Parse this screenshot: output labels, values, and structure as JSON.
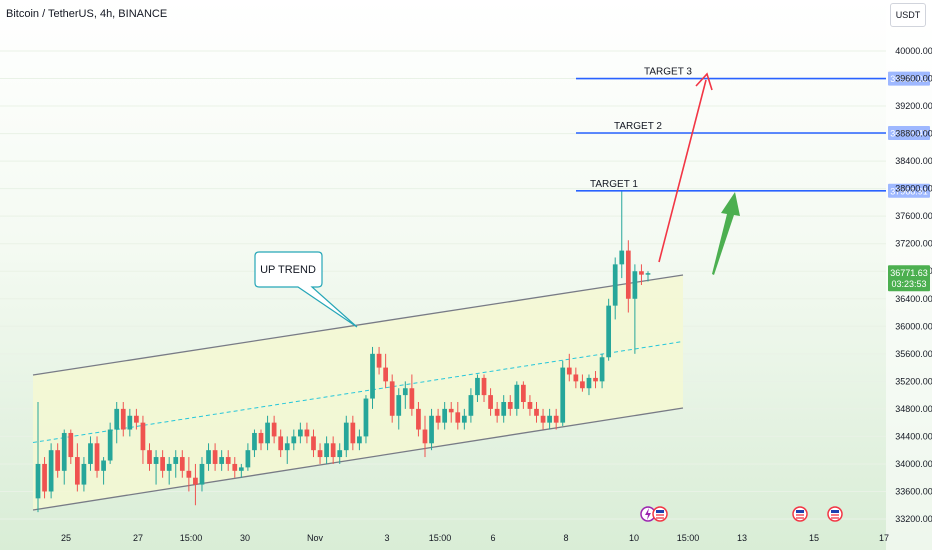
{
  "header": {
    "title": "Bitcoin / TetherUS, 4h, BINANCE",
    "currency": "USDT"
  },
  "colors": {
    "up": "#26a69a",
    "down": "#ef5350",
    "target_line": "#2962ff",
    "channel_fill": "#f5f8d2",
    "channel_line": "#787b86",
    "midline": "#26c6da",
    "red_arrow": "#f23645",
    "green_arrow": "#4caf50",
    "callout_border": "#26a6b7"
  },
  "annotations": {
    "up_trend": "UP TREND",
    "targets": [
      {
        "label": "TARGET 1",
        "price": 37968.91,
        "price_label": "37968.91"
      },
      {
        "label": "TARGET 2",
        "price": 38808.47,
        "price_label": "38808.47"
      },
      {
        "label": "TARGET 3",
        "price": 39599.02,
        "price_label": "39599.02"
      }
    ],
    "last_price": "36771.63",
    "countdown": "03:23:53"
  },
  "chart_data": {
    "type": "candlestick",
    "ylim": [
      33100,
      40150
    ],
    "y_ticks": [
      "40000.00",
      "39600.00",
      "39200.00",
      "38800.00",
      "38400.00",
      "38000.00",
      "37600.00",
      "37200.00",
      "36800.00",
      "36400.00",
      "36000.00",
      "35600.00",
      "35200.00",
      "34800.00",
      "34400.00",
      "34000.00",
      "33600.00",
      "33200.00"
    ],
    "x_ticks": [
      "25",
      "27",
      "15:00",
      "30",
      "Nov",
      "3",
      "15:00",
      "6",
      "8",
      "10",
      "15:00",
      "13",
      "15",
      "17"
    ],
    "candles": [
      [
        33500,
        34900,
        33300,
        34000
      ],
      [
        34000,
        34100,
        33500,
        33600
      ],
      [
        33600,
        34300,
        33500,
        34200
      ],
      [
        34200,
        34300,
        33800,
        33900
      ],
      [
        33900,
        34500,
        33700,
        34450
      ],
      [
        34450,
        34500,
        34000,
        34100
      ],
      [
        34100,
        34300,
        33600,
        33700
      ],
      [
        33700,
        34100,
        33600,
        34000
      ],
      [
        34000,
        34400,
        33900,
        34300
      ],
      [
        34300,
        34400,
        33800,
        33900
      ],
      [
        33900,
        34100,
        33700,
        34050
      ],
      [
        34050,
        34600,
        34000,
        34500
      ],
      [
        34500,
        34900,
        34300,
        34800
      ],
      [
        34800,
        34900,
        34400,
        34500
      ],
      [
        34500,
        34800,
        34400,
        34700
      ],
      [
        34700,
        34800,
        34500,
        34600
      ],
      [
        34600,
        34700,
        34000,
        34200
      ],
      [
        34200,
        34300,
        33900,
        34000
      ],
      [
        34000,
        34200,
        33700,
        34100
      ],
      [
        34100,
        34200,
        33800,
        33900
      ],
      [
        33900,
        34100,
        33700,
        34000
      ],
      [
        34000,
        34200,
        33800,
        34100
      ],
      [
        34100,
        34200,
        33800,
        33900
      ],
      [
        33900,
        34100,
        33600,
        33800
      ],
      [
        33800,
        34000,
        33400,
        33700
      ],
      [
        33700,
        34100,
        33600,
        34000
      ],
      [
        34000,
        34300,
        33900,
        34200
      ],
      [
        34200,
        34300,
        33900,
        34000
      ],
      [
        34000,
        34200,
        33900,
        34100
      ],
      [
        34100,
        34200,
        33900,
        34000
      ],
      [
        34000,
        34100,
        33800,
        33900
      ],
      [
        33900,
        34000,
        33800,
        33950
      ],
      [
        33950,
        34300,
        33900,
        34200
      ],
      [
        34200,
        34500,
        34100,
        34450
      ],
      [
        34450,
        34500,
        34200,
        34300
      ],
      [
        34300,
        34700,
        34200,
        34600
      ],
      [
        34600,
        34700,
        34300,
        34400
      ],
      [
        34400,
        34500,
        34100,
        34200
      ],
      [
        34200,
        34400,
        34000,
        34300
      ],
      [
        34300,
        34500,
        34200,
        34400
      ],
      [
        34400,
        34600,
        34300,
        34500
      ],
      [
        34500,
        34600,
        34300,
        34400
      ],
      [
        34400,
        34500,
        34100,
        34200
      ],
      [
        34200,
        34300,
        34000,
        34100
      ],
      [
        34100,
        34400,
        34000,
        34300
      ],
      [
        34300,
        34400,
        34000,
        34100
      ],
      [
        34100,
        34300,
        34000,
        34200
      ],
      [
        34200,
        34700,
        34100,
        34600
      ],
      [
        34600,
        34700,
        34200,
        34300
      ],
      [
        34300,
        34500,
        34200,
        34400
      ],
      [
        34400,
        35000,
        34300,
        34950
      ],
      [
        34950,
        35700,
        34800,
        35600
      ],
      [
        35600,
        35700,
        35300,
        35400
      ],
      [
        35400,
        35600,
        35100,
        35200
      ],
      [
        35200,
        35300,
        34600,
        34700
      ],
      [
        34700,
        35100,
        34500,
        35000
      ],
      [
        35000,
        35200,
        34800,
        35100
      ],
      [
        35100,
        35300,
        34700,
        34800
      ],
      [
        34800,
        34900,
        34400,
        34500
      ],
      [
        34500,
        34700,
        34100,
        34300
      ],
      [
        34300,
        34800,
        34200,
        34700
      ],
      [
        34700,
        34800,
        34500,
        34600
      ],
      [
        34600,
        34900,
        34500,
        34800
      ],
      [
        34800,
        34900,
        34600,
        34750
      ],
      [
        34750,
        34900,
        34500,
        34600
      ],
      [
        34600,
        34800,
        34500,
        34700
      ],
      [
        34700,
        35100,
        34600,
        35000
      ],
      [
        35000,
        35300,
        34900,
        35250
      ],
      [
        35250,
        35300,
        34900,
        35000
      ],
      [
        35000,
        35100,
        34700,
        34800
      ],
      [
        34800,
        34900,
        34600,
        34700
      ],
      [
        34700,
        35000,
        34600,
        34900
      ],
      [
        34900,
        35000,
        34700,
        34800
      ],
      [
        34800,
        35200,
        34700,
        35150
      ],
      [
        35150,
        35200,
        34800,
        34900
      ],
      [
        34900,
        35000,
        34700,
        34800
      ],
      [
        34800,
        34900,
        34600,
        34700
      ],
      [
        34700,
        34800,
        34500,
        34600
      ],
      [
        34600,
        34800,
        34500,
        34700
      ],
      [
        34700,
        34800,
        34500,
        34600
      ],
      [
        34600,
        35500,
        34550,
        35400
      ],
      [
        35400,
        35600,
        35200,
        35300
      ],
      [
        35300,
        35400,
        35100,
        35200
      ],
      [
        35200,
        35300,
        35050,
        35100
      ],
      [
        35100,
        35300,
        35000,
        35250
      ],
      [
        35250,
        35350,
        35100,
        35200
      ],
      [
        35200,
        35600,
        35100,
        35550
      ],
      [
        35550,
        36400,
        35500,
        36300
      ],
      [
        36300,
        37000,
        36100,
        36900
      ],
      [
        36900,
        37968,
        36700,
        37100
      ],
      [
        37100,
        37250,
        36200,
        36400
      ],
      [
        36400,
        36900,
        35600,
        36800
      ],
      [
        36800,
        36900,
        36600,
        36750
      ],
      [
        36750,
        36800,
        36650,
        36772
      ]
    ]
  }
}
